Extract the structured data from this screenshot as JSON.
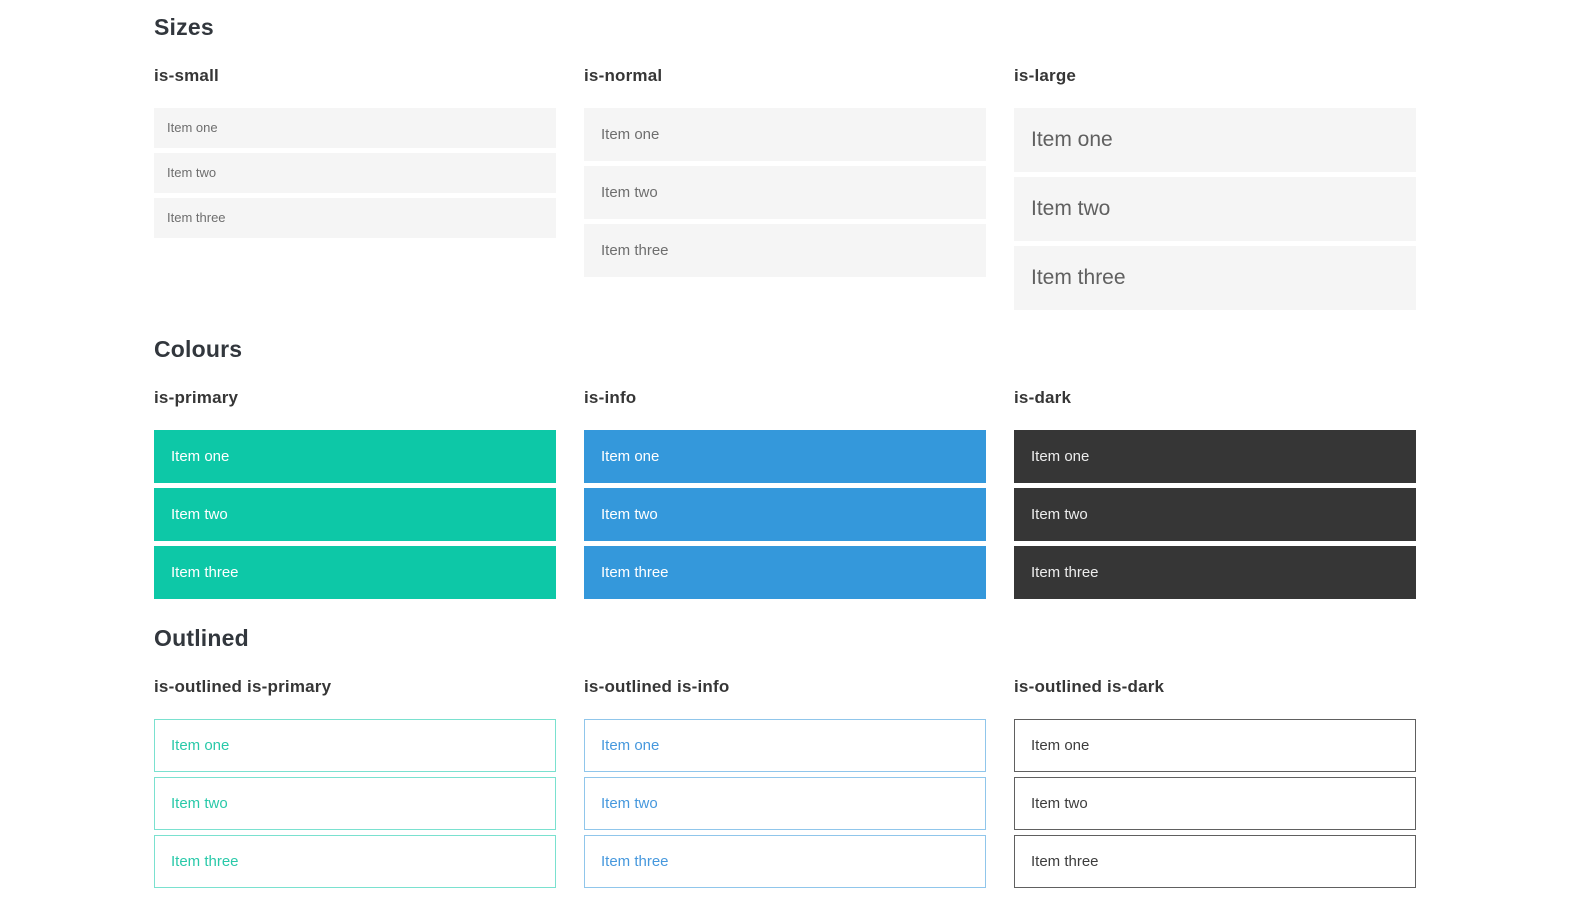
{
  "colors": {
    "primary": "#0dc8a7",
    "info": "#3498db",
    "dark": "#363636",
    "item_background": "#f5f5f5",
    "item_text": "#6e6e6e",
    "heading_text": "#32373d",
    "page_background": "#ffffff"
  },
  "sections": [
    {
      "title": "Sizes",
      "groups": [
        {
          "label": "is-small",
          "variant": "is-small",
          "items": [
            "Item one",
            "Item two",
            "Item three"
          ]
        },
        {
          "label": "is-normal",
          "variant": "is-normal",
          "items": [
            "Item one",
            "Item two",
            "Item three"
          ]
        },
        {
          "label": "is-large",
          "variant": "is-large",
          "items": [
            "Item one",
            "Item two",
            "Item three"
          ]
        }
      ]
    },
    {
      "title": "Colours",
      "groups": [
        {
          "label": "is-primary",
          "variant": "is-primary",
          "items": [
            "Item one",
            "Item two",
            "Item three"
          ]
        },
        {
          "label": "is-info",
          "variant": "is-info",
          "items": [
            "Item one",
            "Item two",
            "Item three"
          ]
        },
        {
          "label": "is-dark",
          "variant": "is-dark",
          "items": [
            "Item one",
            "Item two",
            "Item three"
          ]
        }
      ]
    },
    {
      "title": "Outlined",
      "groups": [
        {
          "label": "is-outlined is-primary",
          "variant": "is-outlined is-primary",
          "items": [
            "Item one",
            "Item two",
            "Item three"
          ]
        },
        {
          "label": "is-outlined is-info",
          "variant": "is-outlined is-info",
          "items": [
            "Item one",
            "Item two",
            "Item three"
          ]
        },
        {
          "label": "is-outlined is-dark",
          "variant": "is-outlined is-dark",
          "items": [
            "Item one",
            "Item two",
            "Item three"
          ]
        }
      ]
    }
  ]
}
